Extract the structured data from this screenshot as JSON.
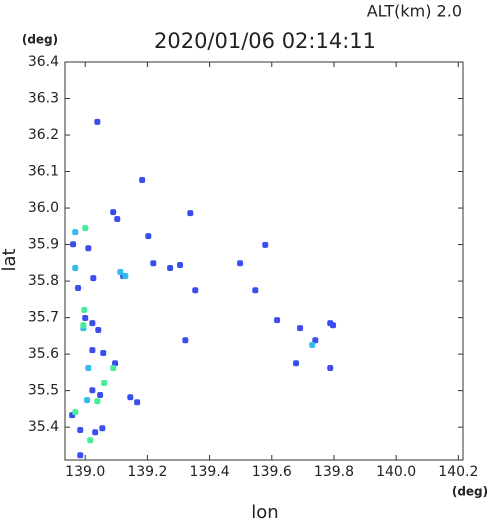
{
  "chart_data": {
    "type": "scatter",
    "title": "2020/01/06 02:14:11",
    "subtitle": "ALT(km) 2.0",
    "x_label": "lon",
    "y_label": "lat",
    "x_unit": "(deg)",
    "y_unit": "(deg)",
    "xlim": [
      138.935,
      140.215
    ],
    "ylim": [
      35.31,
      36.4
    ],
    "xticks": [
      {
        "value": 139.0,
        "label": "139.0"
      },
      139.2,
      139.4,
      139.6,
      139.8,
      {
        "value": 140.0,
        "label": "140.0"
      },
      140.2
    ],
    "yticks": [
      35.4,
      35.5,
      35.6,
      35.7,
      35.8,
      35.9,
      {
        "value": 36.0,
        "label": "36.0"
      },
      36.1,
      36.2,
      36.3,
      36.4
    ],
    "series": [
      {
        "color": "#3a4ef0",
        "x": [
          139.039,
          139.183,
          139.09,
          139.103,
          139.338,
          139.203,
          139.01,
          138.961,
          139.219,
          139.273,
          139.305,
          139.498,
          139.579,
          139.026,
          139.122,
          139.354,
          139.547,
          138.977,
          139.0,
          139.023,
          139.042,
          139.617,
          139.691,
          139.788,
          139.797,
          139.322,
          139.023,
          139.058,
          139.096,
          139.678,
          139.74,
          139.788,
          139.023,
          139.048,
          139.145,
          139.167,
          138.984,
          139.032,
          139.055,
          138.984,
          138.958
        ],
        "values": [
          36.236,
          36.077,
          35.989,
          35.97,
          35.986,
          35.923,
          35.89,
          35.901,
          35.849,
          35.836,
          35.844,
          35.849,
          35.899,
          35.808,
          35.814,
          35.775,
          35.775,
          35.781,
          35.699,
          35.685,
          35.666,
          35.693,
          35.671,
          35.685,
          35.679,
          35.638,
          35.611,
          35.603,
          35.575,
          35.575,
          35.638,
          35.562,
          35.501,
          35.488,
          35.482,
          35.468,
          35.392,
          35.386,
          35.397,
          35.323,
          35.433
        ]
      },
      {
        "color": "#33bbee",
        "x": [
          138.968,
          138.968,
          139.129,
          138.994,
          139.01,
          139.73,
          139.113,
          139.006
        ],
        "values": [
          35.934,
          35.836,
          35.814,
          35.671,
          35.562,
          35.625,
          35.825,
          35.474
        ]
      },
      {
        "color": "#44ee99",
        "x": [
          139.0,
          138.997,
          138.994,
          139.09,
          139.039,
          138.968,
          139.016,
          139.061
        ],
        "values": [
          35.945,
          35.721,
          35.679,
          35.562,
          35.471,
          35.441,
          35.364,
          35.521
        ]
      }
    ]
  }
}
